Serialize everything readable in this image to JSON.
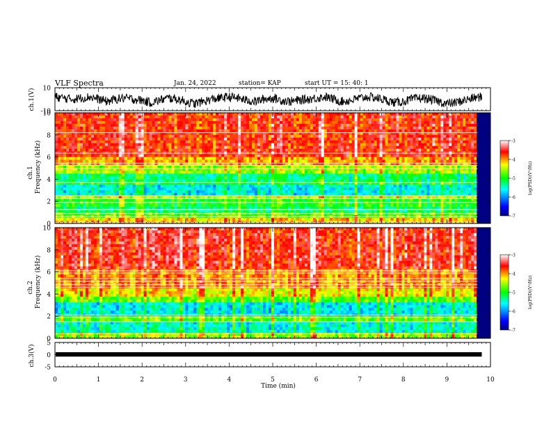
{
  "header": {
    "title": "VLF Spectra",
    "date": "Jan. 24, 2022",
    "station": "station= KAP",
    "start": "start UT =   15: 40: 1"
  },
  "colors": {
    "colormap": [
      "#000080",
      "#0000ff",
      "#00ffff",
      "#00ff00",
      "#ffff00",
      "#ff0000",
      "#ffffff"
    ],
    "trace": "#000000"
  },
  "chart_data": [
    {
      "type": "line",
      "name": "ch.1 waveform",
      "ylabel": "ch.1(V)",
      "ylim": [
        -10,
        10
      ],
      "y_ticks": [
        "10",
        "-10"
      ],
      "x_range_min": [
        0,
        9.8
      ],
      "trend": [
        4,
        3,
        2,
        3,
        4,
        2,
        0,
        2,
        3,
        2,
        1,
        -1,
        1,
        3,
        2,
        0,
        -2,
        0,
        2,
        3,
        4,
        3,
        1,
        0,
        2,
        3,
        1,
        0,
        1,
        2,
        3,
        4,
        2,
        0,
        1,
        3,
        4,
        3,
        1,
        -1,
        0,
        2,
        3,
        2,
        0,
        -2,
        -1,
        1,
        3,
        4
      ],
      "amplitude": 4
    },
    {
      "type": "heatmap",
      "name": "ch.1 spectrogram",
      "ylabel": "ch.1",
      "ylabel2": "Frequency (kHz)",
      "y_ticks": [
        "0",
        "2",
        "4",
        "6",
        "8",
        "10"
      ],
      "ylim_khz": [
        0,
        10
      ],
      "bands": [
        {
          "from": 0.0,
          "to": 0.5,
          "log_psd": -4.2
        },
        {
          "from": 0.5,
          "to": 1.0,
          "log_psd": -4.8
        },
        {
          "from": 1.0,
          "to": 1.6,
          "log_psd": -5.3
        },
        {
          "from": 1.6,
          "to": 2.2,
          "log_psd": -5.0
        },
        {
          "from": 2.2,
          "to": 2.6,
          "log_psd": -4.5
        },
        {
          "from": 2.6,
          "to": 3.4,
          "log_psd": -5.6
        },
        {
          "from": 3.4,
          "to": 3.8,
          "log_psd": -5.0
        },
        {
          "from": 3.8,
          "to": 4.6,
          "log_psd": -5.3
        },
        {
          "from": 4.6,
          "to": 5.2,
          "log_psd": -4.6
        },
        {
          "from": 5.2,
          "to": 6.0,
          "log_psd": -4.1
        },
        {
          "from": 6.0,
          "to": 10.0,
          "log_psd": -3.7
        }
      ],
      "lines_khz": [
        0.1,
        0.6,
        0.9,
        1.25,
        1.9,
        2.25,
        2.5,
        3.7,
        4.95,
        5.25,
        5.45,
        6.35,
        8.2
      ]
    },
    {
      "type": "heatmap",
      "name": "ch.2 spectrogram",
      "ylabel": "ch.2",
      "ylabel2": "Frequency (kHz)",
      "y_ticks": [
        "0",
        "2",
        "4",
        "6",
        "8",
        "10"
      ],
      "ylim_khz": [
        0,
        10
      ],
      "bands": [
        {
          "from": 0.0,
          "to": 0.6,
          "log_psd": -4.6
        },
        {
          "from": 0.6,
          "to": 1.6,
          "log_psd": -5.5
        },
        {
          "from": 1.6,
          "to": 2.0,
          "log_psd": -4.8
        },
        {
          "from": 2.0,
          "to": 3.2,
          "log_psd": -5.6
        },
        {
          "from": 3.2,
          "to": 3.8,
          "log_psd": -4.8
        },
        {
          "from": 3.8,
          "to": 4.6,
          "log_psd": -4.3
        },
        {
          "from": 4.6,
          "to": 6.2,
          "log_psd": -4.0
        },
        {
          "from": 6.2,
          "to": 10.0,
          "log_psd": -3.6
        }
      ],
      "lines_khz": [
        0.4,
        1.5,
        1.9,
        2.1,
        4.6,
        4.85,
        5.15,
        5.4,
        5.9,
        6.1
      ]
    },
    {
      "type": "line",
      "name": "ch.3 waveform",
      "ylabel": "ch.3(V)",
      "ylim": [
        -5,
        5
      ],
      "y_ticks": [
        "5",
        "0",
        "-5"
      ],
      "x_range_min": [
        0,
        9.8
      ],
      "level": 0.1,
      "amplitude": 0.9
    }
  ],
  "x_axis": {
    "label": "Time (min)",
    "ticks": [
      "0",
      "1",
      "2",
      "3",
      "4",
      "5",
      "6",
      "7",
      "8",
      "9",
      "10"
    ],
    "xlim_min": [
      0,
      10
    ]
  },
  "colorbar": {
    "ticks": [
      "-3",
      "-4",
      "-5",
      "-6",
      "-7"
    ],
    "range": [
      -7,
      -3
    ],
    "label": "log(PSD)(V²/Hz)"
  }
}
